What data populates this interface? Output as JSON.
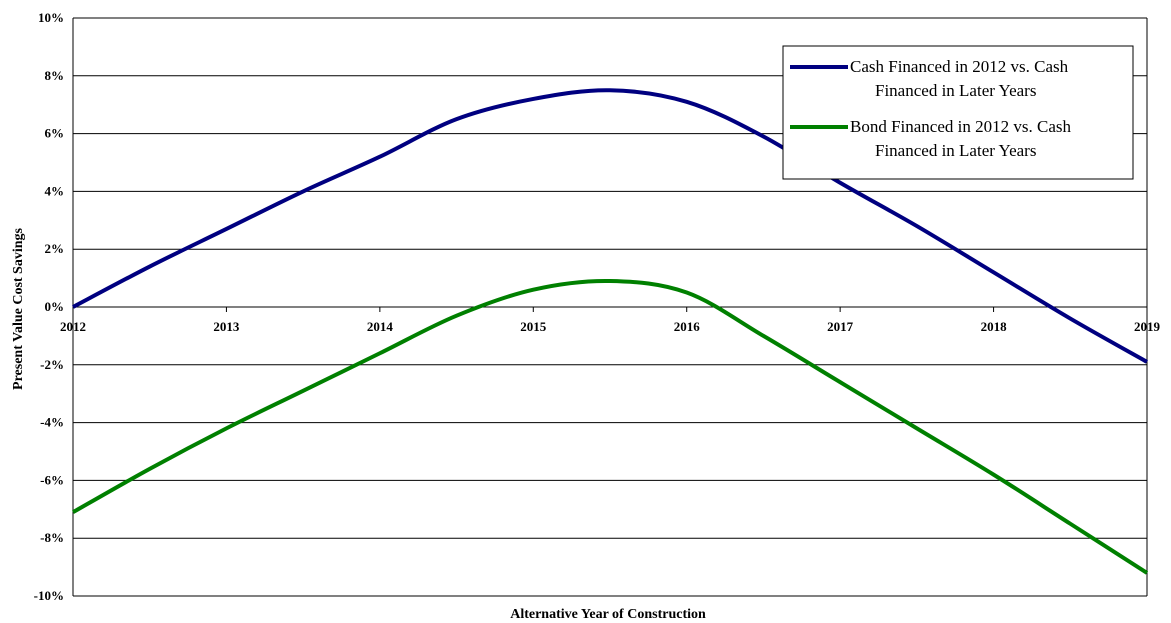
{
  "chart_data": {
    "type": "line",
    "title": "",
    "xlabel": "Alternative Year of Construction",
    "ylabel": "Present Value Cost Savings",
    "x": [
      2012,
      2012.5,
      2013,
      2013.5,
      2014,
      2014.5,
      2015,
      2015.5,
      2016,
      2016.5,
      2017,
      2017.5,
      2018,
      2018.5,
      2019
    ],
    "xticks": [
      "2012",
      "2013",
      "2014",
      "2015",
      "2016",
      "2017",
      "2018",
      "2019"
    ],
    "ylim": [
      -10,
      10
    ],
    "yticks": [
      "10%",
      "8%",
      "6%",
      "4%",
      "2%",
      "0%",
      "-2%",
      "-4%",
      "-6%",
      "-8%",
      "-10%"
    ],
    "grid": "horizontal",
    "legend_position": "top-right",
    "series": [
      {
        "name_lines": [
          "Cash Financed in 2012 vs. Cash",
          "Financed in Later Years"
        ],
        "color": "#000080",
        "values": [
          0.0,
          1.4,
          2.7,
          4.0,
          5.2,
          6.5,
          7.2,
          7.5,
          7.1,
          5.9,
          4.3,
          2.8,
          1.2,
          -0.4,
          -1.9
        ]
      },
      {
        "name_lines": [
          "Bond Financed in 2012 vs. Cash",
          "Financed in Later Years"
        ],
        "color": "#008000",
        "values": [
          -7.1,
          -5.6,
          -4.2,
          -2.9,
          -1.6,
          -0.3,
          0.6,
          0.9,
          0.5,
          -1.0,
          -2.6,
          -4.2,
          -5.8,
          -7.5,
          -9.2
        ]
      }
    ]
  }
}
